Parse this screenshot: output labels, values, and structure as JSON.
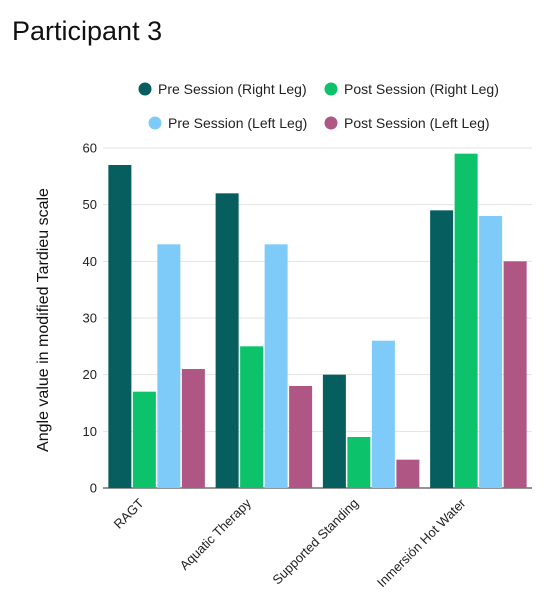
{
  "chart_data": {
    "type": "bar",
    "title": "Participant 3",
    "xlabel": "",
    "ylabel": "Angle value in modified Tardieu scale",
    "ylim": [
      0,
      60
    ],
    "yticks": [
      0,
      10,
      20,
      30,
      40,
      50,
      60
    ],
    "grid": true,
    "legend_position": "top",
    "categories": [
      "RAGT",
      "Aquatic Therapy",
      "Supported Standing",
      "Inmersión Hot Water"
    ],
    "series": [
      {
        "name": "Pre Session (Right Leg)",
        "color": "#065e5e",
        "values": [
          57,
          52,
          20,
          49
        ]
      },
      {
        "name": "Post Session (Right Leg)",
        "color": "#0cc26b",
        "values": [
          17,
          25,
          9,
          59
        ]
      },
      {
        "name": "Pre Session (Left Leg)",
        "color": "#7ecbfa",
        "values": [
          43,
          43,
          26,
          48
        ]
      },
      {
        "name": "Post Session (Left Leg)",
        "color": "#b05685",
        "values": [
          21,
          18,
          5,
          40
        ]
      }
    ]
  }
}
